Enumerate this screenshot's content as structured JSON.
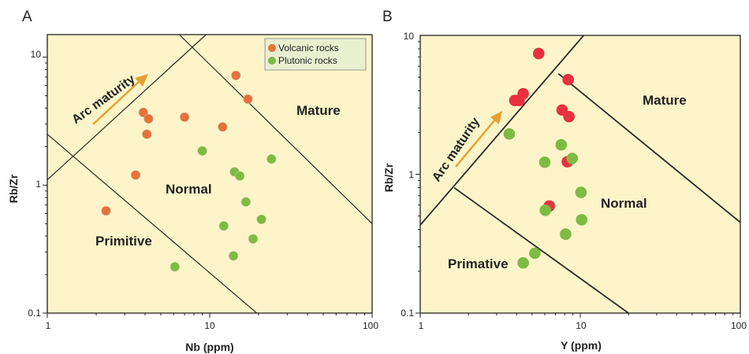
{
  "chart_data": [
    {
      "type": "scatter",
      "panel_label": "A",
      "xlabel": "Nb (ppm)",
      "ylabel": "Rb/Zr",
      "xscale": "log",
      "yscale": "log",
      "xlim": [
        1,
        100
      ],
      "ylim": [
        0.1,
        15
      ],
      "x_ticks": [
        "1",
        "10",
        "100"
      ],
      "y_ticks": [
        "0.1",
        "1",
        "10"
      ],
      "background": "#fdf5c9",
      "fields": [
        "Primitive",
        "Normal",
        "Mature"
      ],
      "arrow_label": "Arc maturity",
      "arrow_color": "#e8a030",
      "legend_position": "top-right",
      "boundaries": [
        {
          "x": [
            1,
            19.5
          ],
          "y": [
            2.5,
            0.1
          ]
        },
        {
          "x": [
            1,
            9.5
          ],
          "y": [
            1.1,
            15
          ]
        },
        {
          "x": [
            6.5,
            100
          ],
          "y": [
            15,
            0.5
          ]
        }
      ],
      "series": [
        {
          "name": "Volcanic rocks",
          "color": "#e8703a",
          "points": [
            {
              "x": 2.3,
              "y": 0.63
            },
            {
              "x": 3.5,
              "y": 1.2
            },
            {
              "x": 3.9,
              "y": 3.7
            },
            {
              "x": 4.2,
              "y": 3.3
            },
            {
              "x": 4.1,
              "y": 2.5
            },
            {
              "x": 7.0,
              "y": 3.4
            },
            {
              "x": 12.0,
              "y": 2.85
            },
            {
              "x": 14.5,
              "y": 7.2
            },
            {
              "x": 17.2,
              "y": 4.7
            }
          ]
        },
        {
          "name": "Plutonic rocks",
          "color": "#7dbb42",
          "points": [
            {
              "x": 6.1,
              "y": 0.23
            },
            {
              "x": 9.0,
              "y": 1.85
            },
            {
              "x": 12.2,
              "y": 0.48
            },
            {
              "x": 14.0,
              "y": 0.28
            },
            {
              "x": 14.2,
              "y": 1.27
            },
            {
              "x": 15.3,
              "y": 1.18
            },
            {
              "x": 16.7,
              "y": 0.74
            },
            {
              "x": 18.5,
              "y": 0.38
            },
            {
              "x": 20.8,
              "y": 0.54
            },
            {
              "x": 24.0,
              "y": 1.6
            }
          ]
        }
      ]
    },
    {
      "type": "scatter",
      "panel_label": "B",
      "xlabel": "Y (ppm)",
      "ylabel": "Rb/Zr",
      "xscale": "log",
      "yscale": "log",
      "xlim": [
        1,
        100
      ],
      "ylim": [
        0.1,
        10
      ],
      "x_ticks": [
        "1",
        "10",
        "100"
      ],
      "y_ticks": [
        "0.1",
        "1",
        "10"
      ],
      "background": "#fdf5c9",
      "fields": [
        "Primative",
        "Normal",
        "Mature"
      ],
      "arrow_label": "Arc maturity",
      "arrow_color": "#e8a030",
      "boundaries": [
        {
          "x": [
            1,
            10.5
          ],
          "y": [
            0.43,
            10
          ]
        },
        {
          "x": [
            1.63,
            20
          ],
          "y": [
            0.8,
            0.1
          ]
        },
        {
          "x": [
            7.3,
            100
          ],
          "y": [
            5.3,
            0.45
          ]
        }
      ],
      "series": [
        {
          "color": "#e8303e",
          "points": [
            {
              "x": 5.5,
              "y": 7.4
            },
            {
              "x": 8.4,
              "y": 4.8
            },
            {
              "x": 4.4,
              "y": 3.8
            },
            {
              "x": 3.9,
              "y": 3.4
            },
            {
              "x": 4.15,
              "y": 3.4
            },
            {
              "x": 7.7,
              "y": 2.9
            },
            {
              "x": 8.5,
              "y": 2.6
            },
            {
              "x": 8.3,
              "y": 1.23
            },
            {
              "x": 6.4,
              "y": 0.59
            }
          ]
        },
        {
          "color": "#7dbb42",
          "points": [
            {
              "x": 3.6,
              "y": 1.95
            },
            {
              "x": 7.6,
              "y": 1.63
            },
            {
              "x": 6.0,
              "y": 1.22
            },
            {
              "x": 8.9,
              "y": 1.3
            },
            {
              "x": 10.1,
              "y": 0.74
            },
            {
              "x": 6.05,
              "y": 0.55
            },
            {
              "x": 10.2,
              "y": 0.47
            },
            {
              "x": 8.1,
              "y": 0.37
            },
            {
              "x": 5.2,
              "y": 0.27
            },
            {
              "x": 4.4,
              "y": 0.23
            }
          ]
        }
      ]
    }
  ]
}
